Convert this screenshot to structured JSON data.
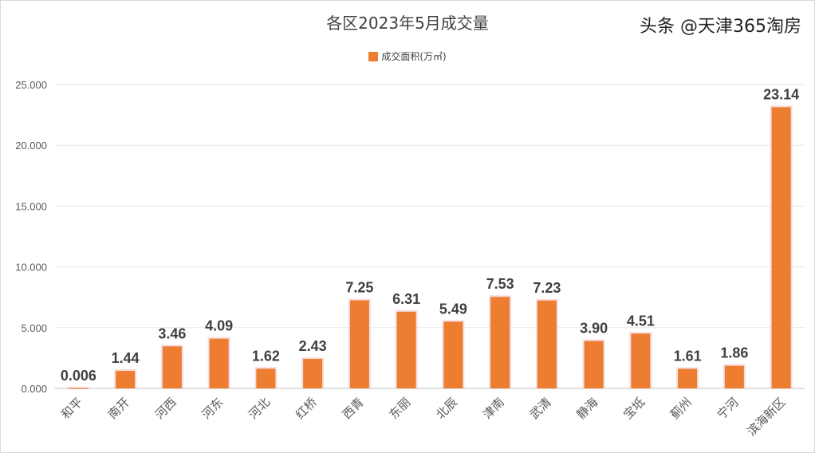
{
  "chart_data": {
    "type": "bar",
    "title": "各区2023年5月成交量",
    "legend": {
      "position": "top",
      "entries": [
        "成交面积(万㎡)"
      ]
    },
    "categories": [
      "和平",
      "南开",
      "河西",
      "河东",
      "河北",
      "红桥",
      "西青",
      "东丽",
      "北辰",
      "津南",
      "武清",
      "静海",
      "宝坻",
      "蓟州",
      "宁河",
      "滨海新区"
    ],
    "series": [
      {
        "name": "成交面积(万㎡)",
        "values": [
          0.006,
          1.44,
          3.46,
          4.09,
          1.62,
          2.43,
          7.25,
          6.31,
          5.49,
          7.53,
          7.23,
          3.9,
          4.51,
          1.61,
          1.86,
          23.14
        ],
        "labels": [
          "0.006",
          "1.44",
          "3.46",
          "4.09",
          "1.62",
          "2.43",
          "7.25",
          "6.31",
          "5.49",
          "7.53",
          "7.23",
          "3.90",
          "4.51",
          "1.61",
          "1.86",
          "23.14"
        ]
      }
    ],
    "yticks": [
      "0.000",
      "5.000",
      "10.000",
      "15.000",
      "20.000",
      "25.000"
    ],
    "ylim": [
      0,
      25
    ],
    "grid": true,
    "color": "#ED7D31"
  },
  "watermark": "头条 @天津365淘房"
}
